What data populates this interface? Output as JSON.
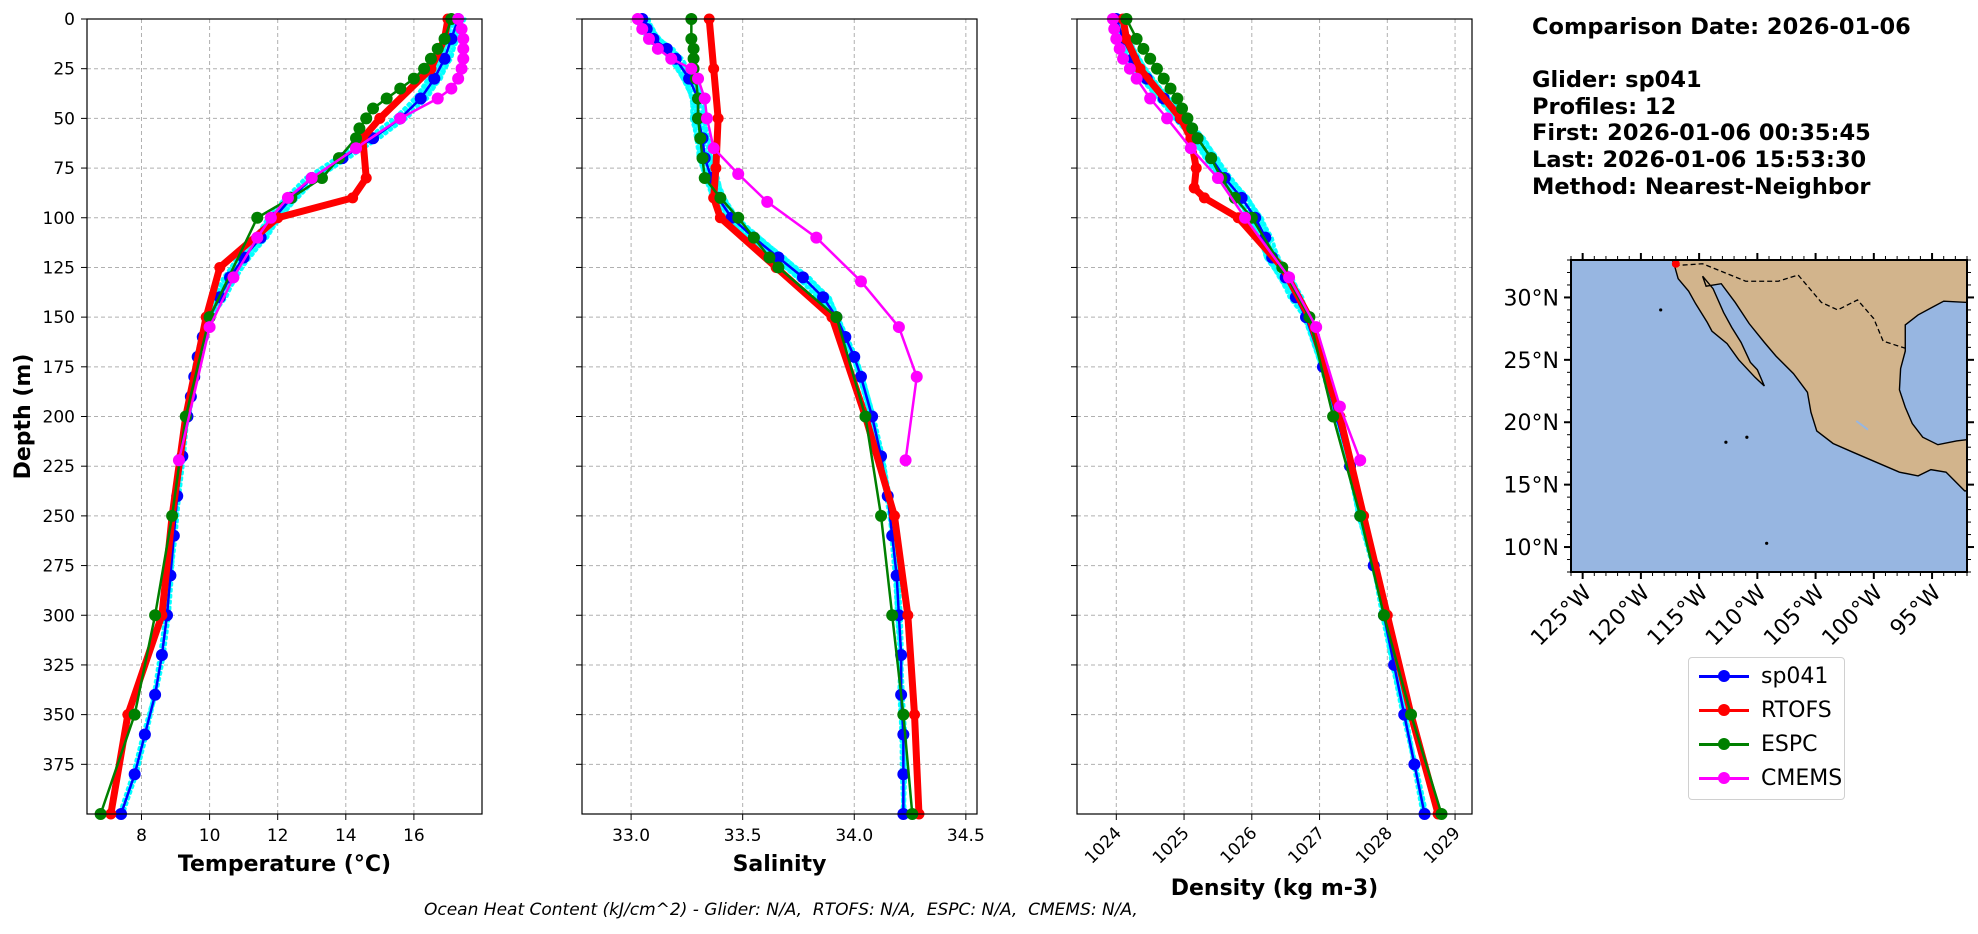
{
  "chart_data": [
    {
      "type": "line",
      "xlabel": "Temperature (°C)",
      "ylabel": "Depth (m)",
      "xlim": [
        6.4,
        18.0
      ],
      "ylim": [
        400,
        0
      ],
      "xticks": [
        8,
        10,
        12,
        14,
        16
      ],
      "yticks": [
        0,
        25,
        50,
        75,
        100,
        125,
        150,
        175,
        200,
        225,
        250,
        275,
        300,
        325,
        350,
        375
      ],
      "grid": true,
      "series": [
        {
          "name": "sp041",
          "color": "#0000ff",
          "depth": [
            0,
            10,
            20,
            30,
            40,
            50,
            60,
            70,
            80,
            90,
            100,
            110,
            120,
            130,
            140,
            150,
            160,
            170,
            180,
            190,
            200,
            220,
            240,
            260,
            280,
            300,
            320,
            340,
            360,
            380,
            400
          ],
          "values": [
            17.3,
            17.1,
            16.9,
            16.6,
            16.2,
            15.6,
            14.8,
            13.9,
            13.0,
            12.4,
            11.9,
            11.5,
            11.0,
            10.6,
            10.3,
            10.0,
            9.8,
            9.65,
            9.55,
            9.45,
            9.35,
            9.2,
            9.05,
            8.95,
            8.85,
            8.75,
            8.6,
            8.4,
            8.1,
            7.8,
            7.4
          ]
        },
        {
          "name": "RTOFS",
          "color": "#ff0000",
          "depth": [
            0,
            10,
            25,
            50,
            60,
            80,
            90,
            100,
            125,
            150,
            200,
            250,
            300,
            350,
            400
          ],
          "values": [
            17.0,
            16.9,
            16.5,
            15.0,
            14.5,
            14.6,
            14.2,
            12.0,
            10.3,
            9.9,
            9.3,
            8.9,
            8.6,
            7.6,
            7.1
          ]
        },
        {
          "name": "ESPC",
          "color": "#008000",
          "depth": [
            0,
            10,
            15,
            20,
            25,
            30,
            35,
            40,
            45,
            50,
            55,
            60,
            70,
            80,
            90,
            100,
            150,
            200,
            250,
            300,
            350,
            400
          ],
          "values": [
            17.1,
            16.9,
            16.7,
            16.5,
            16.3,
            16.0,
            15.6,
            15.2,
            14.8,
            14.6,
            14.4,
            14.3,
            13.8,
            13.3,
            12.4,
            11.4,
            10.0,
            9.3,
            8.9,
            8.4,
            7.8,
            6.8
          ]
        },
        {
          "name": "CMEMS",
          "color": "#ff00ff",
          "depth": [
            0,
            5,
            10,
            15,
            20,
            25,
            30,
            35,
            40,
            50,
            65,
            80,
            90,
            100,
            110,
            130,
            155,
            222
          ],
          "values": [
            17.3,
            17.4,
            17.45,
            17.45,
            17.45,
            17.4,
            17.3,
            17.1,
            16.7,
            15.6,
            14.3,
            13.0,
            12.3,
            11.8,
            11.4,
            10.7,
            10.0,
            9.1
          ]
        }
      ]
    },
    {
      "type": "line",
      "xlabel": "Salinity",
      "ylabel": "",
      "xlim": [
        32.78,
        34.55
      ],
      "ylim": [
        400,
        0
      ],
      "xticks": [
        33.0,
        33.5,
        34.0,
        34.5
      ],
      "grid": true,
      "series": [
        {
          "name": "sp041",
          "color": "#0000ff",
          "depth": [
            0,
            5,
            10,
            15,
            20,
            30,
            40,
            50,
            60,
            70,
            80,
            90,
            100,
            110,
            120,
            130,
            140,
            150,
            160,
            170,
            180,
            200,
            220,
            240,
            260,
            280,
            300,
            320,
            340,
            360,
            380,
            400
          ],
          "values": [
            33.05,
            33.07,
            33.1,
            33.16,
            33.2,
            33.26,
            33.3,
            33.3,
            33.32,
            33.33,
            33.36,
            33.39,
            33.45,
            33.55,
            33.66,
            33.77,
            33.86,
            33.92,
            33.96,
            34.0,
            34.03,
            34.08,
            34.12,
            34.15,
            34.17,
            34.19,
            34.2,
            34.21,
            34.21,
            34.22,
            34.22,
            34.22
          ]
        },
        {
          "name": "RTOFS",
          "color": "#ff0000",
          "depth": [
            0,
            25,
            50,
            75,
            90,
            100,
            125,
            150,
            200,
            250,
            300,
            350,
            400
          ],
          "values": [
            33.35,
            33.37,
            33.39,
            33.38,
            33.37,
            33.4,
            33.65,
            33.9,
            34.05,
            34.18,
            34.24,
            34.27,
            34.29
          ]
        },
        {
          "name": "ESPC",
          "color": "#008000",
          "depth": [
            0,
            10,
            15,
            20,
            25,
            30,
            40,
            50,
            60,
            70,
            80,
            90,
            100,
            110,
            120,
            125,
            150,
            200,
            250,
            300,
            350,
            400
          ],
          "values": [
            33.27,
            33.27,
            33.28,
            33.28,
            33.28,
            33.29,
            33.3,
            33.3,
            33.31,
            33.32,
            33.33,
            33.4,
            33.48,
            33.55,
            33.62,
            33.66,
            33.92,
            34.05,
            34.12,
            34.17,
            34.22,
            34.26
          ]
        },
        {
          "name": "CMEMS",
          "color": "#ff00ff",
          "depth": [
            0,
            5,
            10,
            15,
            20,
            25,
            30,
            40,
            50,
            65,
            78,
            92,
            110,
            132,
            155,
            180,
            222
          ],
          "values": [
            33.03,
            33.05,
            33.08,
            33.12,
            33.18,
            33.27,
            33.3,
            33.33,
            33.34,
            33.37,
            33.48,
            33.61,
            33.83,
            34.03,
            34.2,
            34.28,
            34.23
          ]
        }
      ]
    },
    {
      "type": "line",
      "xlabel": "Density (kg m-3)",
      "ylabel": "",
      "xlim": [
        1023.42,
        1029.25
      ],
      "ylim": [
        400,
        0
      ],
      "xticks": [
        1024,
        1025,
        1026,
        1027,
        1028,
        1029
      ],
      "grid": true,
      "series": [
        {
          "name": "sp041",
          "color": "#0000ff",
          "depth": [
            0,
            10,
            20,
            30,
            40,
            50,
            60,
            70,
            80,
            90,
            100,
            110,
            120,
            130,
            140,
            150,
            175,
            200,
            225,
            250,
            275,
            300,
            325,
            350,
            375,
            400
          ],
          "values": [
            1024.0,
            1024.1,
            1024.25,
            1024.45,
            1024.7,
            1024.95,
            1025.2,
            1025.4,
            1025.6,
            1025.85,
            1026.05,
            1026.2,
            1026.3,
            1026.5,
            1026.65,
            1026.8,
            1027.05,
            1027.25,
            1027.45,
            1027.6,
            1027.8,
            1027.95,
            1028.1,
            1028.25,
            1028.4,
            1028.55
          ]
        },
        {
          "name": "RTOFS",
          "color": "#ff0000",
          "depth": [
            0,
            10,
            25,
            50,
            60,
            75,
            85,
            90,
            100,
            125,
            150,
            200,
            250,
            300,
            350,
            400
          ],
          "values": [
            1024.1,
            1024.15,
            1024.35,
            1024.95,
            1025.1,
            1025.18,
            1025.15,
            1025.3,
            1025.8,
            1026.45,
            1026.85,
            1027.3,
            1027.65,
            1028.0,
            1028.35,
            1028.75
          ]
        },
        {
          "name": "ESPC",
          "color": "#008000",
          "depth": [
            0,
            10,
            15,
            20,
            25,
            30,
            35,
            40,
            45,
            50,
            55,
            60,
            70,
            80,
            90,
            100,
            125,
            150,
            200,
            250,
            300,
            350,
            400
          ],
          "values": [
            1024.15,
            1024.3,
            1024.4,
            1024.5,
            1024.6,
            1024.7,
            1024.8,
            1024.9,
            1024.97,
            1025.05,
            1025.12,
            1025.2,
            1025.4,
            1025.55,
            1025.75,
            1026.0,
            1026.45,
            1026.85,
            1027.2,
            1027.6,
            1027.95,
            1028.35,
            1028.8
          ]
        },
        {
          "name": "CMEMS",
          "color": "#ff00ff",
          "depth": [
            0,
            5,
            10,
            15,
            20,
            25,
            30,
            40,
            50,
            65,
            80,
            100,
            130,
            155,
            195,
            222
          ],
          "values": [
            1023.95,
            1023.97,
            1024.0,
            1024.05,
            1024.1,
            1024.2,
            1024.3,
            1024.5,
            1024.75,
            1025.1,
            1025.5,
            1025.9,
            1026.55,
            1026.95,
            1027.3,
            1027.6
          ]
        }
      ]
    },
    {
      "type": "map",
      "title": "",
      "lon_range": [
        -126,
        -92
      ],
      "lat_range": [
        8,
        33
      ],
      "lon_ticks": [
        "125°W",
        "120°W",
        "115°W",
        "110°W",
        "105°W",
        "100°W",
        "95°W"
      ],
      "lat_ticks": [
        "30°N",
        "25°N",
        "20°N",
        "15°N",
        "10°N"
      ],
      "lon_tick_values": [
        -125,
        -120,
        -115,
        -110,
        -105,
        -100,
        -95
      ],
      "lat_tick_values": [
        30,
        25,
        20,
        15,
        10
      ],
      "ocean_color": "#97b6e1",
      "land_color": "#d2b48c"
    }
  ],
  "info": {
    "comparison_date": "Comparison Date: 2026-01-06",
    "glider": "Glider: sp041",
    "profiles": "Profiles: 12",
    "first": "First: 2026-01-06 00:35:45",
    "last": "Last: 2026-01-06 15:53:30",
    "method": "Method: Nearest-Neighbor"
  },
  "legend": [
    {
      "label": "sp041",
      "color": "#0000ff"
    },
    {
      "label": "RTOFS",
      "color": "#ff0000"
    },
    {
      "label": "ESPC",
      "color": "#008000"
    },
    {
      "label": "CMEMS",
      "color": "#ff00ff"
    }
  ],
  "footer": "Ocean Heat Content (kJ/cm^2) - Glider: N/A,  RTOFS: N/A,  ESPC: N/A,  CMEMS: N/A,"
}
